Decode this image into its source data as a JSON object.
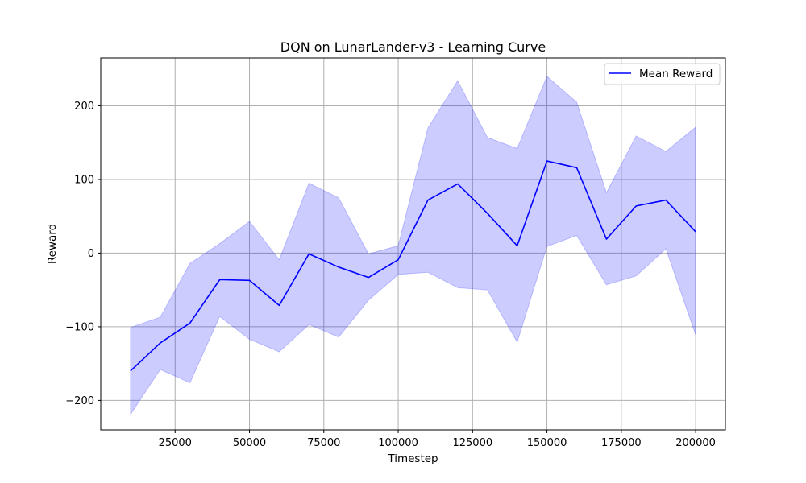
{
  "chart_data": {
    "type": "line",
    "title": "DQN on LunarLander-v3 - Learning Curve",
    "xlabel": "Timestep",
    "ylabel": "Reward",
    "xlim": [
      0,
      210000
    ],
    "ylim": [
      -240,
      265
    ],
    "grid": true,
    "legend_position": "upper-right",
    "x_ticks": [
      25000,
      50000,
      75000,
      100000,
      125000,
      150000,
      175000,
      200000
    ],
    "y_ticks": [
      -200,
      -100,
      0,
      100,
      200
    ],
    "x": [
      10000,
      20000,
      30000,
      40000,
      50000,
      60000,
      70000,
      80000,
      90000,
      100000,
      110000,
      120000,
      130000,
      140000,
      150000,
      160000,
      170000,
      180000,
      190000,
      200000
    ],
    "series": [
      {
        "name": "Mean Reward",
        "color": "#0000ff",
        "values": [
          -160,
          -122,
          -95,
          -36,
          -37,
          -71,
          -1,
          -19,
          -33,
          -9,
          72,
          94,
          54,
          10,
          125,
          116,
          19,
          64,
          72,
          29
        ]
      }
    ],
    "band": {
      "color": "#0000ff",
      "opacity": 0.2,
      "upper": [
        -101,
        -87,
        -14,
        13,
        43,
        -9,
        95,
        75,
        -1,
        10,
        170,
        234,
        157,
        142,
        240,
        205,
        82,
        159,
        138,
        171
      ],
      "lower": [
        -219,
        -158,
        -176,
        -86,
        -117,
        -134,
        -97,
        -114,
        -64,
        -29,
        -26,
        -47,
        -50,
        -121,
        9,
        24,
        -43,
        -31,
        6,
        -111
      ]
    }
  }
}
